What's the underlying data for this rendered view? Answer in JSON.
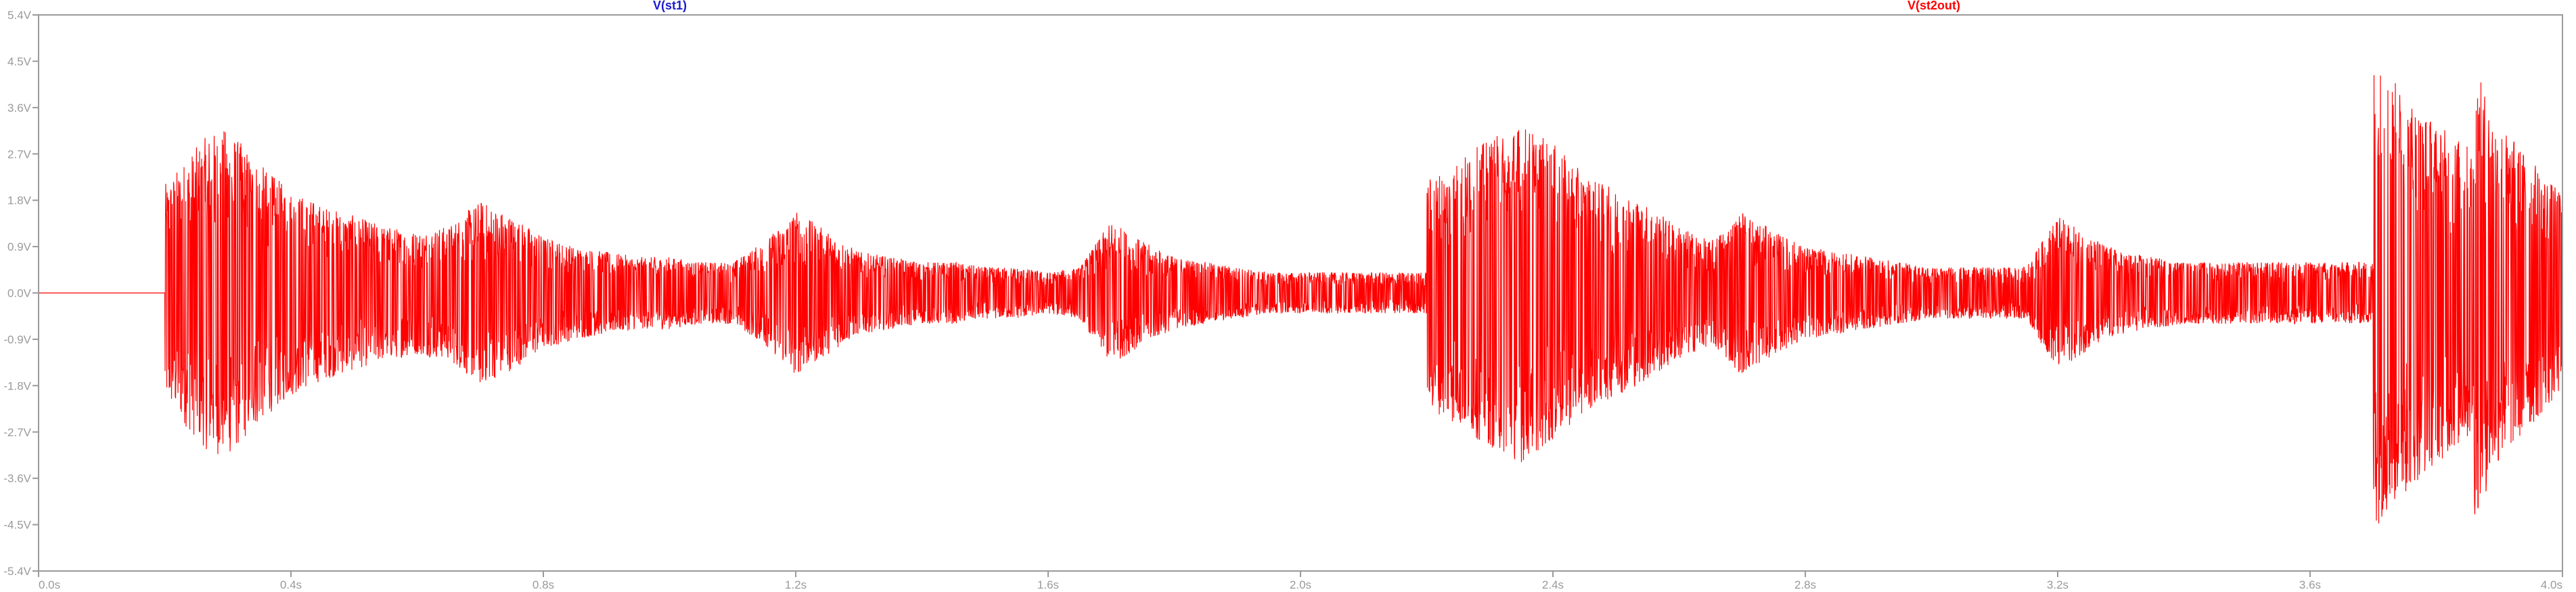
{
  "chart_data": {
    "type": "line",
    "title": "",
    "xlabel": "",
    "ylabel": "",
    "xlim": [
      0.0,
      4.0
    ],
    "ylim": [
      -5.4,
      5.4
    ],
    "grid": false,
    "legend": "top",
    "x_ticks": [
      {
        "value": 0.0,
        "label": "0.0s"
      },
      {
        "value": 0.4,
        "label": "0.4s"
      },
      {
        "value": 0.8,
        "label": "0.8s"
      },
      {
        "value": 1.2,
        "label": "1.2s"
      },
      {
        "value": 1.6,
        "label": "1.6s"
      },
      {
        "value": 2.0,
        "label": "2.0s"
      },
      {
        "value": 2.4,
        "label": "2.4s"
      },
      {
        "value": 2.8,
        "label": "2.8s"
      },
      {
        "value": 3.2,
        "label": "3.2s"
      },
      {
        "value": 3.6,
        "label": "3.6s"
      },
      {
        "value": 4.0,
        "label": "4.0s"
      }
    ],
    "y_ticks": [
      {
        "value": 5.4,
        "label": "5.4V"
      },
      {
        "value": 4.5,
        "label": "4.5V"
      },
      {
        "value": 3.6,
        "label": "3.6V"
      },
      {
        "value": 2.7,
        "label": "2.7V"
      },
      {
        "value": 1.8,
        "label": "1.8V"
      },
      {
        "value": 0.9,
        "label": "0.9V"
      },
      {
        "value": 0.0,
        "label": "0.0V"
      },
      {
        "value": -0.9,
        "label": "-0.9V"
      },
      {
        "value": -1.8,
        "label": "-1.8V"
      },
      {
        "value": -2.7,
        "label": "-2.7V"
      },
      {
        "value": -3.6,
        "label": "-3.6V"
      },
      {
        "value": -4.5,
        "label": "-4.5V"
      },
      {
        "value": -5.4,
        "label": "-5.4V"
      }
    ],
    "series": [
      {
        "name": "V(st1)",
        "color": "#1a1acc",
        "x": [],
        "y": []
      },
      {
        "name": "V(st2out)",
        "color": "#ff0000",
        "x": [
          0.0,
          0.2,
          0.2,
          0.24,
          0.27,
          0.3,
          0.33,
          0.36,
          0.4,
          0.45,
          0.5,
          0.55,
          0.6,
          0.65,
          0.7,
          0.75,
          0.8,
          0.85,
          0.9,
          0.95,
          1.0,
          1.05,
          1.1,
          1.15,
          1.2,
          1.25,
          1.3,
          1.35,
          1.4,
          1.45,
          1.5,
          1.55,
          1.6,
          1.65,
          1.7,
          1.75,
          1.8,
          1.85,
          1.9,
          1.95,
          2.0,
          2.1,
          2.2,
          2.2,
          2.25,
          2.3,
          2.35,
          2.4,
          2.45,
          2.5,
          2.55,
          2.6,
          2.65,
          2.7,
          2.75,
          2.8,
          2.85,
          2.9,
          2.95,
          3.0,
          3.05,
          3.1,
          3.15,
          3.2,
          3.25,
          3.3,
          3.35,
          3.4,
          3.45,
          3.5,
          3.55,
          3.6,
          3.65,
          3.7,
          3.7,
          3.75,
          3.8,
          3.86,
          3.86,
          3.9,
          3.95,
          4.0
        ],
        "envelope": [
          0.0,
          0.0,
          2.1,
          2.7,
          3.1,
          3.2,
          2.8,
          2.4,
          2.0,
          1.7,
          1.5,
          1.3,
          1.2,
          1.3,
          1.8,
          1.5,
          1.1,
          0.9,
          0.8,
          0.7,
          0.7,
          0.6,
          0.6,
          1.0,
          1.6,
          1.2,
          0.8,
          0.7,
          0.6,
          0.6,
          0.5,
          0.5,
          0.4,
          0.5,
          1.4,
          1.0,
          0.7,
          0.6,
          0.5,
          0.4,
          0.4,
          0.4,
          0.4,
          2.2,
          2.6,
          3.0,
          3.3,
          2.9,
          2.3,
          2.0,
          1.7,
          1.3,
          1.0,
          1.6,
          1.2,
          0.9,
          0.8,
          0.7,
          0.6,
          0.5,
          0.5,
          0.5,
          0.5,
          1.5,
          1.1,
          0.8,
          0.7,
          0.6,
          0.6,
          0.6,
          0.6,
          0.6,
          0.6,
          0.6,
          4.6,
          3.9,
          3.3,
          2.8,
          4.4,
          3.3,
          2.6,
          1.9
        ]
      }
    ]
  }
}
